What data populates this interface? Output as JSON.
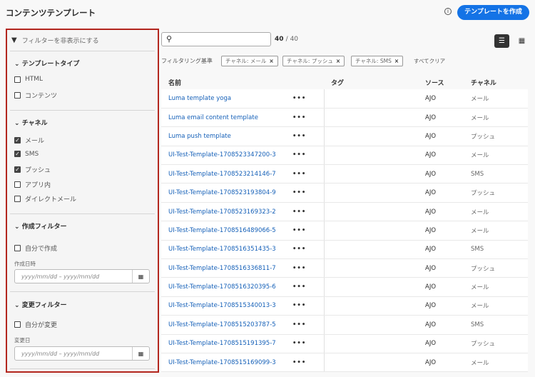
{
  "header": {
    "title": "コンテンツテンプレート",
    "create_button": "テンプレートを作成",
    "info_icon": "info-icon"
  },
  "sidebar": {
    "hide_filters": "フィルターを非表示にする",
    "template_type": {
      "title": "テンプレートタイプ",
      "options": [
        {
          "label": "HTML",
          "checked": false
        },
        {
          "label": "コンテンツ",
          "checked": false
        }
      ]
    },
    "channel": {
      "title": "チャネル",
      "options": [
        {
          "label": "メール",
          "checked": true
        },
        {
          "label": "SMS",
          "checked": true
        },
        {
          "label": "プッシュ",
          "checked": true
        },
        {
          "label": "アプリ内",
          "checked": false
        },
        {
          "label": "ダイレクトメール",
          "checked": false
        }
      ]
    },
    "created": {
      "title": "作成フィルター",
      "mine": "自分で作成",
      "date_label": "作成日時",
      "date_placeholder": "yyyy/mm/dd  –  yyyy/mm/dd"
    },
    "modified": {
      "title": "変更フィルター",
      "mine": "自分が変更",
      "date_label": "変更日",
      "date_placeholder": "yyyy/mm/dd  –  yyyy/mm/dd"
    }
  },
  "toolbar": {
    "search_value": "",
    "count": "40",
    "total": "/ 40",
    "filtered_by": "フィルタリング基準",
    "chips": [
      "チャネル: メール",
      "チャネル: プッシュ",
      "チャネル: SMS"
    ],
    "clear_all": "すべてクリア"
  },
  "table": {
    "headers": [
      "名前",
      "タグ",
      "ソース",
      "チャネル"
    ],
    "rows": [
      {
        "name": "Luma template yoga",
        "source": "AJO",
        "channel": "メール"
      },
      {
        "name": "Luma email content template",
        "source": "AJO",
        "channel": "メール"
      },
      {
        "name": "Luma push template",
        "source": "AJO",
        "channel": "プッシュ"
      },
      {
        "name": "UI-Test-Template-1708523347200-3",
        "source": "AJO",
        "channel": "メール"
      },
      {
        "name": "UI-Test-Template-1708523214146-7",
        "source": "AJO",
        "channel": "SMS"
      },
      {
        "name": "UI-Test-Template-1708523193804-9",
        "source": "AJO",
        "channel": "プッシュ"
      },
      {
        "name": "UI-Test-Template-1708523169323-2",
        "source": "AJO",
        "channel": "メール"
      },
      {
        "name": "UI-Test-Template-1708516489066-5",
        "source": "AJO",
        "channel": "メール"
      },
      {
        "name": "UI-Test-Template-1708516351435-3",
        "source": "AJO",
        "channel": "SMS"
      },
      {
        "name": "UI-Test-Template-1708516336811-7",
        "source": "AJO",
        "channel": "プッシュ"
      },
      {
        "name": "UI-Test-Template-1708516320395-6",
        "source": "AJO",
        "channel": "メール"
      },
      {
        "name": "UI-Test-Template-1708515340013-3",
        "source": "AJO",
        "channel": "メール"
      },
      {
        "name": "UI-Test-Template-1708515203787-5",
        "source": "AJO",
        "channel": "SMS"
      },
      {
        "name": "UI-Test-Template-1708515191395-7",
        "source": "AJO",
        "channel": "プッシュ"
      },
      {
        "name": "UI-Test-Template-1708515169099-3",
        "source": "AJO",
        "channel": "メール"
      }
    ]
  }
}
